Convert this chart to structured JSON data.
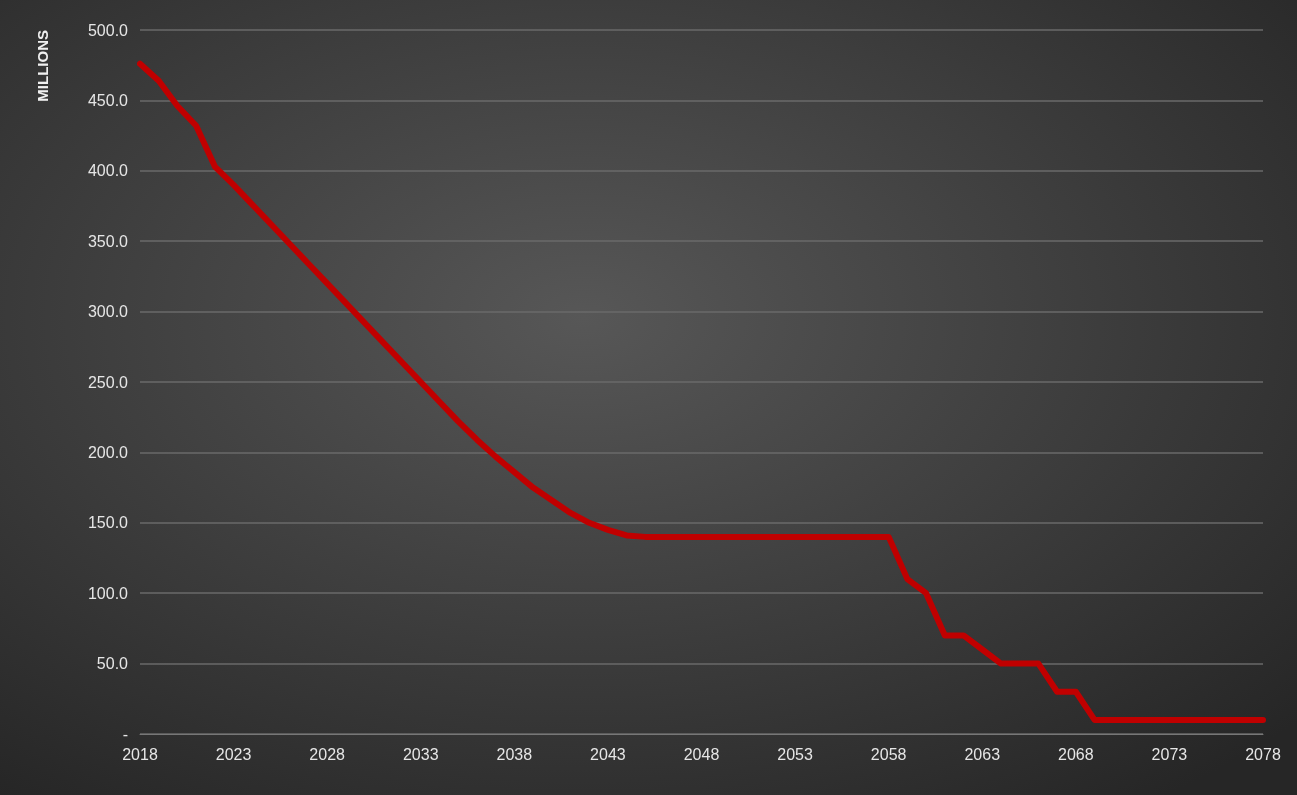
{
  "chart_data": {
    "type": "line",
    "ylabel": "MILLIONS",
    "x": [
      2018,
      2019,
      2020,
      2021,
      2022,
      2023,
      2024,
      2025,
      2026,
      2027,
      2028,
      2029,
      2030,
      2031,
      2032,
      2033,
      2034,
      2035,
      2036,
      2037,
      2038,
      2039,
      2040,
      2041,
      2042,
      2043,
      2044,
      2045,
      2046,
      2047,
      2048,
      2049,
      2050,
      2051,
      2052,
      2053,
      2054,
      2055,
      2056,
      2057,
      2058,
      2059,
      2060,
      2061,
      2062,
      2063,
      2064,
      2065,
      2066,
      2067,
      2068,
      2069,
      2070,
      2071,
      2072,
      2073,
      2074,
      2075,
      2076,
      2077,
      2078
    ],
    "series": [
      {
        "color": "#c00000",
        "values": [
          476,
          464,
          446,
          432,
          403,
          390,
          376,
          362,
          348,
          334,
          320,
          306,
          292,
          278,
          264,
          250,
          236,
          222,
          209,
          197,
          186,
          175,
          166,
          157,
          150,
          145,
          141,
          140,
          140,
          140,
          140,
          140,
          140,
          140,
          140,
          140,
          140,
          140,
          140,
          140,
          140,
          110,
          100,
          70,
          70,
          60,
          50,
          50,
          50,
          30,
          30,
          10,
          10,
          10,
          10,
          10,
          10,
          10,
          10,
          10,
          10
        ]
      }
    ],
    "xlim": [
      2018,
      2078
    ],
    "xticks": [
      2018,
      2023,
      2028,
      2033,
      2038,
      2043,
      2048,
      2053,
      2058,
      2063,
      2068,
      2073,
      2078
    ],
    "ylim": [
      0,
      500
    ],
    "yticks": [
      {
        "value": 0,
        "label": "-"
      },
      {
        "value": 50,
        "label": "50.0"
      },
      {
        "value": 100,
        "label": "100.0"
      },
      {
        "value": 150,
        "label": "150.0"
      },
      {
        "value": 200,
        "label": "200.0"
      },
      {
        "value": 250,
        "label": "250.0"
      },
      {
        "value": 300,
        "label": "300.0"
      },
      {
        "value": 350,
        "label": "350.0"
      },
      {
        "value": 400,
        "label": "400.0"
      },
      {
        "value": 450,
        "label": "450.0"
      },
      {
        "value": 500,
        "label": "500.0"
      }
    ],
    "grid": "y",
    "marker": "none",
    "line_style": "solid"
  }
}
